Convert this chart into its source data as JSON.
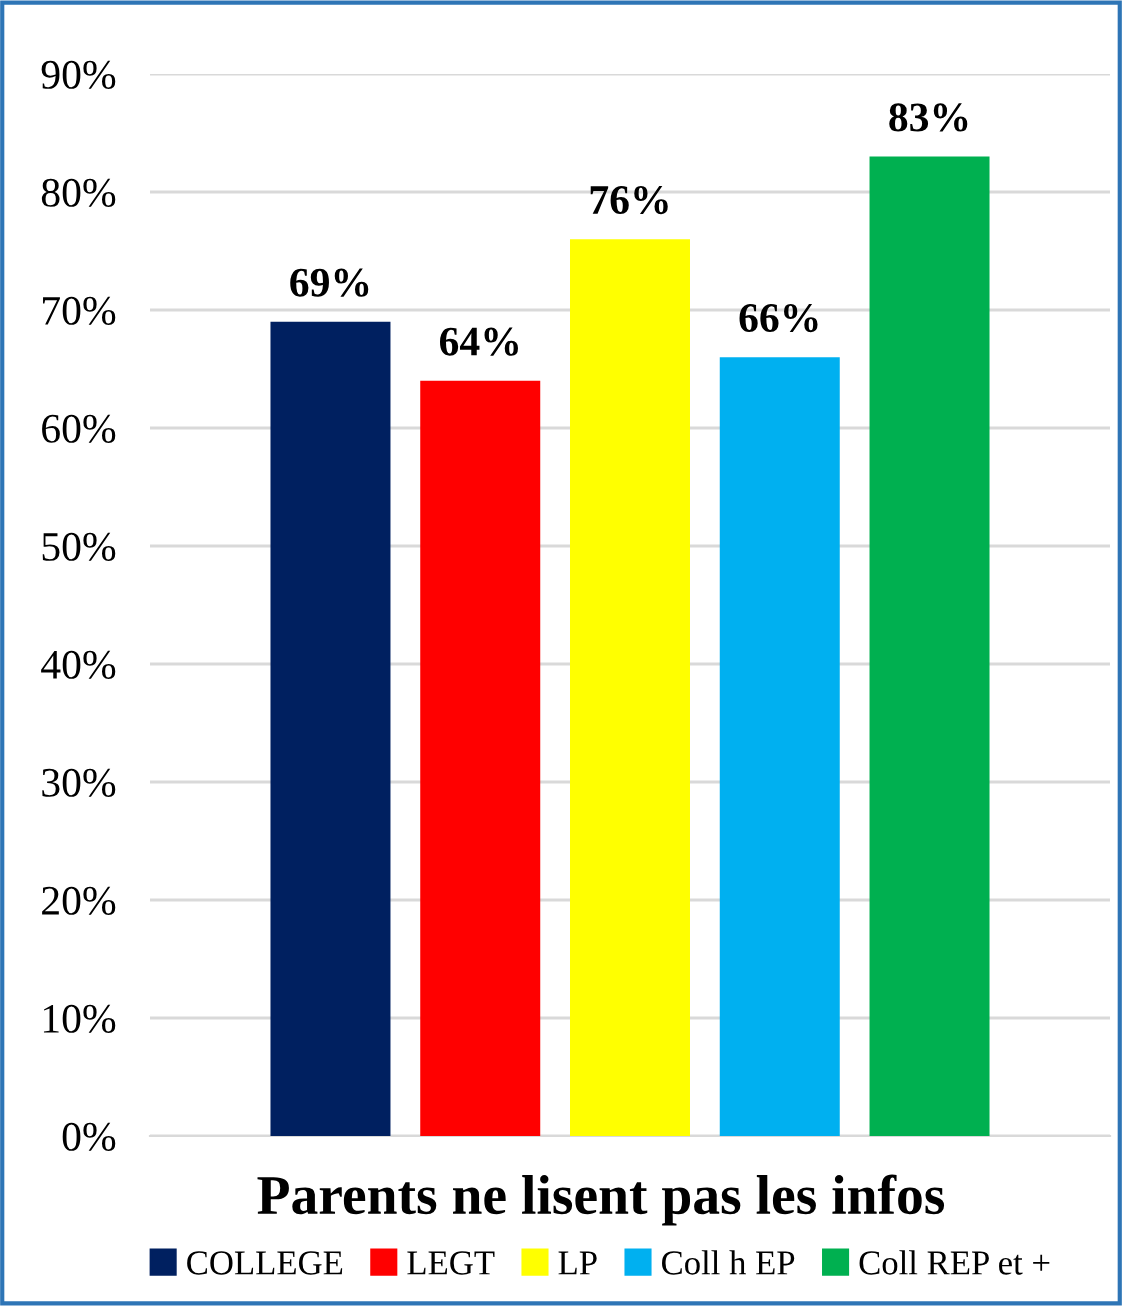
{
  "chart_data": {
    "type": "bar",
    "title": "Parents ne lisent pas les infos",
    "categories": [
      null
    ],
    "series": [
      {
        "name": "COLLEGE",
        "color": "#002060",
        "values": [
          69
        ],
        "value_labels": [
          "69%"
        ]
      },
      {
        "name": "LEGT",
        "color": "#ff0000",
        "values": [
          64
        ],
        "value_labels": [
          "64%"
        ]
      },
      {
        "name": "LP",
        "color": "#ffff00",
        "values": [
          76
        ],
        "value_labels": [
          "76%"
        ]
      },
      {
        "name": "Coll h EP",
        "color": "#00b0f0",
        "values": [
          66
        ],
        "value_labels": [
          "66%"
        ]
      },
      {
        "name": "Coll REP et +",
        "color": "#00b050",
        "values": [
          83
        ],
        "value_labels": [
          "83%"
        ]
      }
    ],
    "ylim": [
      0,
      90
    ],
    "yticks": [
      {
        "value": 0,
        "label": "0%"
      },
      {
        "value": 10,
        "label": "10%"
      },
      {
        "value": 20,
        "label": "20%"
      },
      {
        "value": 30,
        "label": "30%"
      },
      {
        "value": 40,
        "label": "40%"
      },
      {
        "value": 50,
        "label": "50%"
      },
      {
        "value": 60,
        "label": "60%"
      },
      {
        "value": 70,
        "label": "70%"
      },
      {
        "value": 80,
        "label": "80%"
      },
      {
        "value": 90,
        "label": "90%"
      }
    ],
    "grid": "y",
    "legend": "bottom"
  }
}
